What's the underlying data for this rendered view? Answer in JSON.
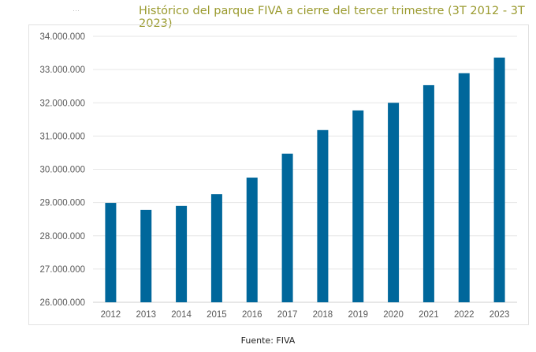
{
  "chart_data": {
    "type": "bar",
    "title": "Histórico del parque FIVA a cierre del tercer trimestre (3T 2012 - 3T 2023)",
    "dots": "···",
    "categories": [
      "2012",
      "2013",
      "2014",
      "2015",
      "2016",
      "2017",
      "2018",
      "2019",
      "2020",
      "2021",
      "2022",
      "2023"
    ],
    "values": [
      28990000,
      28780000,
      28900000,
      29250000,
      29750000,
      30470000,
      31180000,
      31770000,
      32000000,
      32530000,
      32890000,
      33360000
    ],
    "ylim": [
      26000000,
      34000000
    ],
    "yticks": [
      "26.000.000",
      "27.000.000",
      "28.000.000",
      "29.000.000",
      "30.000.000",
      "31.000.000",
      "32.000.000",
      "33.000.000",
      "34.000.000"
    ],
    "grid": true,
    "bar_color": "#00679b",
    "xlabel": "",
    "ylabel": "",
    "source": "Fuente: FIVA"
  }
}
